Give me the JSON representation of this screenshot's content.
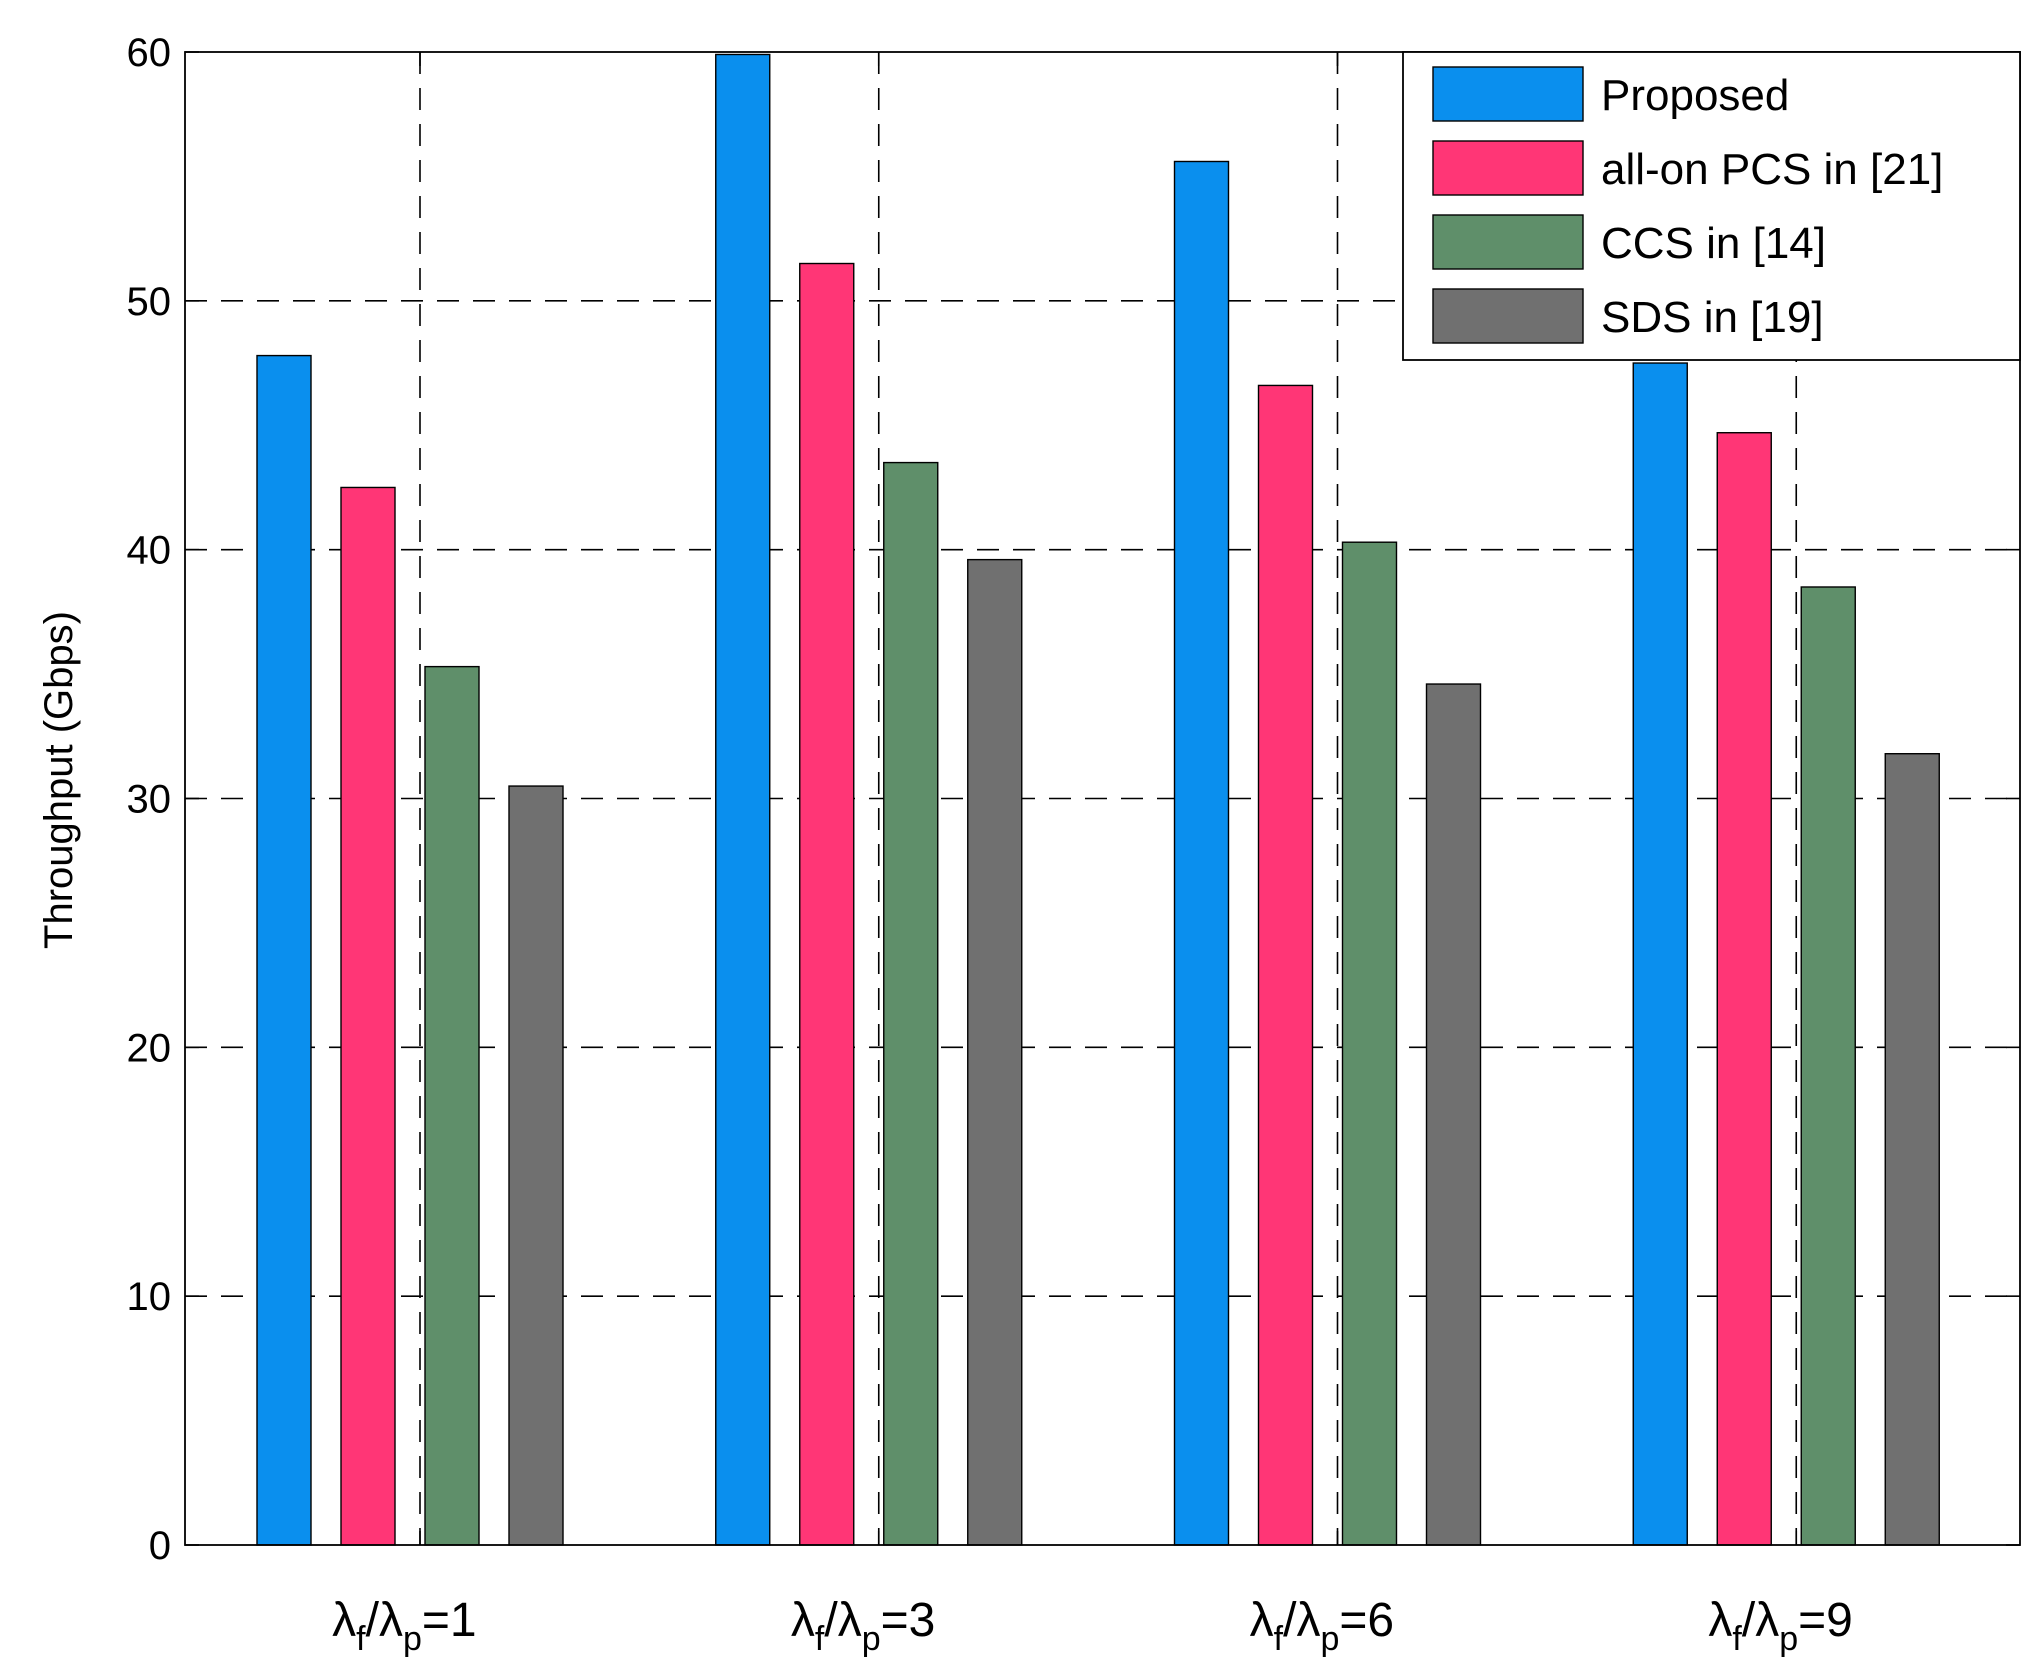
{
  "chart_data": {
    "type": "bar",
    "title": "",
    "xlabel": "",
    "ylabel": "Throughput (Gbps)",
    "ylim": [
      0,
      60
    ],
    "yticks": [
      0,
      10,
      20,
      30,
      40,
      50,
      60
    ],
    "grid": true,
    "legend_position": "top-right",
    "categories": [
      {
        "symbol": "λ",
        "sub1": "f",
        "sep": "/",
        "sub2": "p",
        "suffix": "=1"
      },
      {
        "symbol": "λ",
        "sub1": "f",
        "sep": "/",
        "sub2": "p",
        "suffix": "=3"
      },
      {
        "symbol": "λ",
        "sub1": "f",
        "sep": "/",
        "sub2": "p",
        "suffix": "=6"
      },
      {
        "symbol": "λ",
        "sub1": "f",
        "sep": "/",
        "sub2": "p",
        "suffix": "=9"
      }
    ],
    "series": [
      {
        "name": "Proposed",
        "color": "#0a8fee",
        "values": [
          47.8,
          59.9,
          55.6,
          47.5
        ]
      },
      {
        "name": "all-on PCS in [21]",
        "color": "#ff3676",
        "values": [
          42.5,
          51.5,
          46.6,
          44.7
        ]
      },
      {
        "name": "CCS in [14]",
        "color": "#5f8f6a",
        "values": [
          35.3,
          43.5,
          40.3,
          38.5
        ]
      },
      {
        "name": "SDS in [19]",
        "color": "#707070",
        "values": [
          30.5,
          39.6,
          34.6,
          31.8
        ]
      }
    ]
  }
}
